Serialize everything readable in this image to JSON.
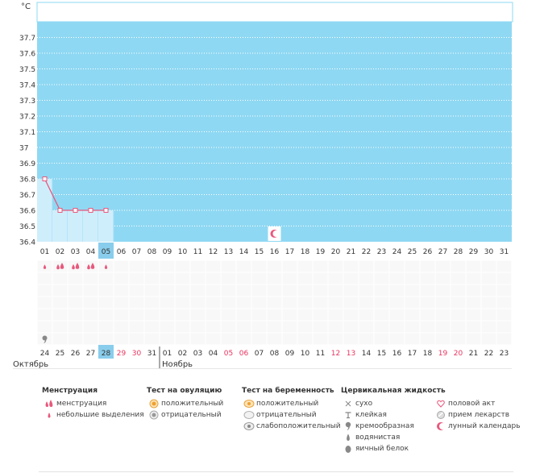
{
  "chart_data": {
    "type": "line",
    "yunit": "°C",
    "ylim": [
      36.4,
      37.8
    ],
    "yticks": [
      "37.7",
      "37.6",
      "37.5",
      "37.4",
      "37.3",
      "37.2",
      "37.1",
      "37",
      "36.9",
      "36.8",
      "36.7",
      "36.6",
      "36.5",
      "36.4"
    ],
    "cycle_days": [
      "01",
      "02",
      "03",
      "04",
      "05",
      "06",
      "07",
      "08",
      "09",
      "10",
      "11",
      "12",
      "13",
      "14",
      "15",
      "16",
      "17",
      "18",
      "19",
      "20",
      "21",
      "22",
      "23",
      "24",
      "25",
      "26",
      "27",
      "28",
      "29",
      "30",
      "31"
    ],
    "current_day": "05",
    "series": [
      {
        "values": [
          36.8,
          36.6,
          36.6,
          36.6,
          36.6
        ]
      }
    ],
    "marker_days": {
      "lunar": [
        "16"
      ]
    },
    "menstruation_rows": {
      "menstruation": [
        "02",
        "03",
        "04"
      ],
      "light": [
        "01",
        "02",
        "03",
        "04",
        "05"
      ]
    },
    "cervical_rows": {
      "creamy": [
        "01"
      ]
    },
    "calendar_dates": [
      {
        "d": "24",
        "w": false
      },
      {
        "d": "25",
        "w": false
      },
      {
        "d": "26",
        "w": false
      },
      {
        "d": "27",
        "w": false
      },
      {
        "d": "28",
        "w": false
      },
      {
        "d": "29",
        "w": true
      },
      {
        "d": "30",
        "w": true
      },
      {
        "d": "31",
        "w": false
      },
      {
        "d": "01",
        "w": false
      },
      {
        "d": "02",
        "w": false
      },
      {
        "d": "03",
        "w": false
      },
      {
        "d": "04",
        "w": false
      },
      {
        "d": "05",
        "w": true
      },
      {
        "d": "06",
        "w": true
      },
      {
        "d": "07",
        "w": false
      },
      {
        "d": "08",
        "w": false
      },
      {
        "d": "09",
        "w": false
      },
      {
        "d": "10",
        "w": false
      },
      {
        "d": "11",
        "w": false
      },
      {
        "d": "12",
        "w": true
      },
      {
        "d": "13",
        "w": true
      },
      {
        "d": "14",
        "w": false
      },
      {
        "d": "15",
        "w": false
      },
      {
        "d": "16",
        "w": false
      },
      {
        "d": "17",
        "w": false
      },
      {
        "d": "18",
        "w": false
      },
      {
        "d": "19",
        "w": true
      },
      {
        "d": "20",
        "w": true
      },
      {
        "d": "21",
        "w": false
      },
      {
        "d": "22",
        "w": false
      },
      {
        "d": "23",
        "w": false
      }
    ],
    "today_date": "28",
    "months": [
      "Октябрь",
      "Ноябрь"
    ]
  },
  "legend": {
    "menstruation": {
      "title": "Менструация",
      "items": [
        "менструация",
        "небольшие выделения"
      ]
    },
    "ovulation": {
      "title": "Тест на овуляцию",
      "items": [
        "положительный",
        "отрицательный"
      ]
    },
    "pregnancy": {
      "title": "Тест на беременность",
      "items": [
        "положительный",
        "отрицательный",
        "слабоположительный"
      ]
    },
    "cervical": {
      "title": "Цервикальная жидкость",
      "items": [
        "сухо",
        "клейкая",
        "кремообразная",
        "водянистая",
        "яичный белок"
      ]
    },
    "other": {
      "items": [
        "половой акт",
        "прием лекарств",
        "лунный календарь"
      ]
    }
  },
  "colors": {
    "plot": "#8fd8f3",
    "highlight": "#89cdec",
    "series": "#e8587c",
    "weekend": "#e8345f",
    "grid": "#ffffff"
  }
}
